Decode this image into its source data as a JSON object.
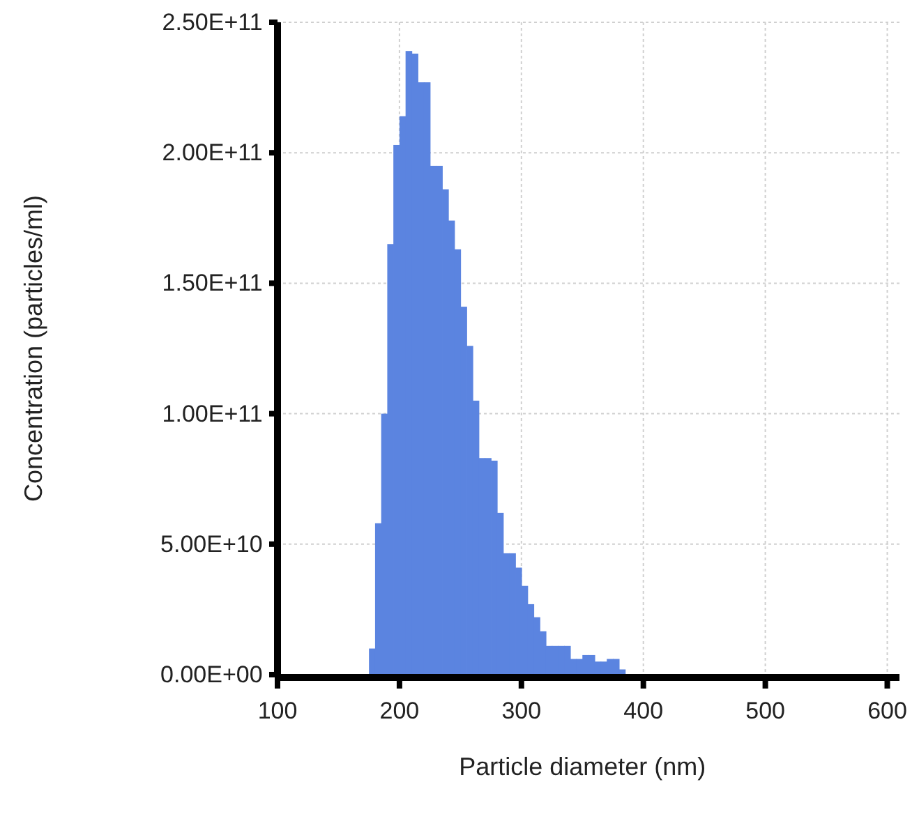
{
  "chart_data": {
    "type": "histogram",
    "xlabel": "Particle diameter (nm)",
    "ylabel": "Concentration (particles/ml)",
    "bins": [
      175,
      180,
      185,
      190,
      195,
      200,
      205,
      210,
      215,
      220,
      225,
      230,
      235,
      240,
      245,
      250,
      255,
      260,
      265,
      270,
      275,
      280,
      285,
      290,
      295,
      300,
      305,
      310,
      315,
      320,
      325,
      330,
      335,
      340,
      345,
      350,
      355,
      360,
      365,
      370,
      375,
      380,
      385
    ],
    "values": [
      10000000000,
      58000000000,
      100000000000,
      165000000000,
      203000000000,
      214000000000,
      239000000000,
      238000000000,
      227000000000,
      227000000000,
      195000000000,
      195000000000,
      186000000000,
      174000000000,
      163000000000,
      141000000000,
      126000000000,
      105000000000,
      83000000000,
      83000000000,
      82000000000,
      62000000000,
      46500000000,
      46500000000,
      41000000000,
      34000000000,
      27000000000,
      22000000000,
      16600000000,
      11000000000,
      11000000000,
      11000000000,
      11000000000,
      6000000000,
      6000000000,
      7500000000,
      7500000000,
      5000000000,
      5000000000,
      6000000000,
      6000000000,
      2000000000
    ],
    "color": "#5b84e0",
    "xlim": [
      100,
      610
    ],
    "xticks": [
      100,
      200,
      300,
      400,
      500,
      600
    ],
    "ylim": [
      0,
      250000000000
    ],
    "yticks": [
      {
        "value": 0,
        "label": "0.00E+00"
      },
      {
        "value": 50000000000,
        "label": "5.00E+10"
      },
      {
        "value": 100000000000,
        "label": "1.00E+11"
      },
      {
        "value": 150000000000,
        "label": "1.50E+11"
      },
      {
        "value": 200000000000,
        "label": "2.00E+11"
      },
      {
        "value": 250000000000,
        "label": "2.50E+11"
      }
    ],
    "grid": true
  }
}
